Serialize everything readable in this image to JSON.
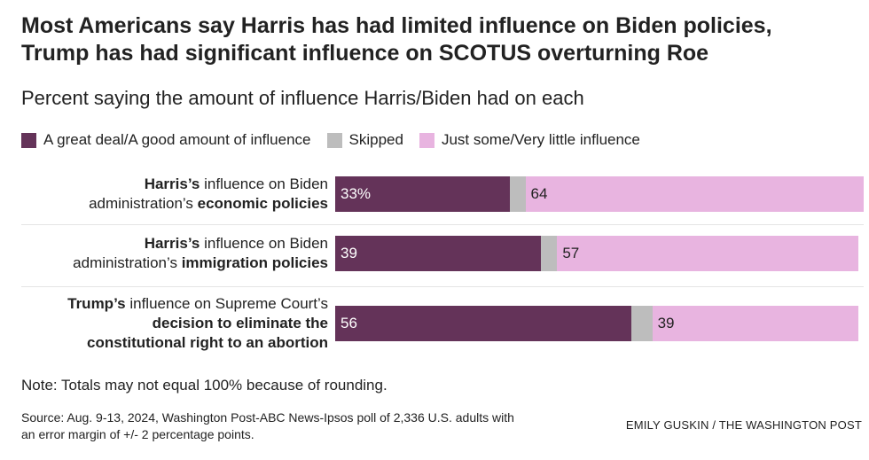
{
  "title_lines": [
    "Most Americans say Harris has had limited influence on Biden policies,",
    "Trump has had significant influence on SCOTUS overturning Roe"
  ],
  "subtitle": "Percent saying the amount of influence Harris/Biden had on each",
  "legend": [
    {
      "label": "A great deal/A good amount of influence",
      "color": "#643359"
    },
    {
      "label": "Skipped",
      "color": "#bdbdbd"
    },
    {
      "label": "Just some/Very little influence",
      "color": "#e8b4e0"
    }
  ],
  "chart_data": {
    "type": "bar",
    "orientation": "horizontal",
    "stacked": true,
    "xlim": [
      0,
      100
    ],
    "categories": [
      "Harris’s influence on Biden administration’s economic policies",
      "Harris’s influence on Biden administration’s immigration policies",
      "Trump’s influence on Supreme Court’s decision to eliminate the constitutional right to an abortion"
    ],
    "category_labels": [
      [
        [
          {
            "t": "Harris’s",
            "b": true
          },
          {
            "t": " influence on Biden",
            "b": false
          }
        ],
        [
          {
            "t": "administration’s ",
            "b": false
          },
          {
            "t": "economic policies",
            "b": true
          }
        ]
      ],
      [
        [
          {
            "t": "Harris’s",
            "b": true
          },
          {
            "t": " influence on Biden",
            "b": false
          }
        ],
        [
          {
            "t": "administration’s ",
            "b": false
          },
          {
            "t": "immigration policies",
            "b": true
          }
        ]
      ],
      [
        [
          {
            "t": "Trump’s",
            "b": true
          },
          {
            "t": " influence on Supreme Court’s",
            "b": false
          }
        ],
        [
          {
            "t": "decision to eliminate the",
            "b": true
          }
        ],
        [
          {
            "t": "constitutional right to an abortion",
            "b": true
          }
        ]
      ]
    ],
    "series": [
      {
        "name": "A great deal/A good amount of influence",
        "values": [
          33,
          39,
          56
        ],
        "labels": [
          "33%",
          "39",
          "56"
        ]
      },
      {
        "name": "Skipped",
        "values": [
          3,
          3,
          4
        ],
        "labels": [
          "",
          "",
          ""
        ]
      },
      {
        "name": "Just some/Very little influence",
        "values": [
          64,
          57,
          39
        ],
        "labels": [
          "64",
          "57",
          "39"
        ]
      }
    ],
    "colors": [
      "#643359",
      "#bdbdbd",
      "#e8b4e0"
    ],
    "label_colors": [
      "#ffffff",
      "#222222",
      "#222222"
    ]
  },
  "note": "Note: Totals may not equal 100% because of rounding.",
  "source_lines": [
    "Source: Aug. 9-13, 2024, Washington Post-ABC News-Ipsos poll of 2,336 U.S. adults with",
    "an error margin of +/- 2 percentage points."
  ],
  "credit": "EMILY GUSKIN / THE WASHINGTON POST"
}
